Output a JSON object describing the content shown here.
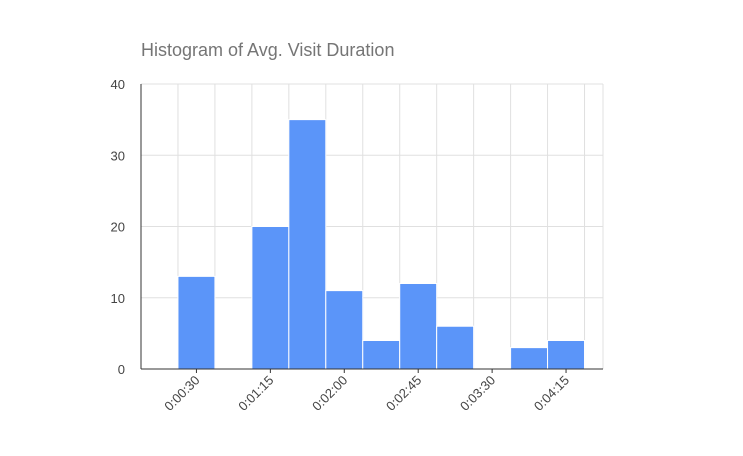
{
  "chart_data": {
    "type": "histogram",
    "title": "Histogram of Avg. Visit Duration",
    "bins": [
      -3.75,
      18.75,
      41.25,
      63.75,
      86.25,
      108.75,
      131.25,
      153.75,
      176.25,
      198.75,
      221.25,
      243.75,
      266.25
    ],
    "values": [
      0,
      13,
      0,
      20,
      35,
      11,
      4,
      12,
      6,
      0,
      3,
      4
    ],
    "color": "#5b95f9",
    "xlim": [
      -3.75,
      277.5
    ],
    "xticks": [
      {
        "value": 30,
        "label": "0:00:30"
      },
      {
        "value": 75,
        "label": "0:01:15"
      },
      {
        "value": 120,
        "label": "0:02:00"
      },
      {
        "value": 165,
        "label": "0:02:45"
      },
      {
        "value": 210,
        "label": "0:03:30"
      },
      {
        "value": 255,
        "label": "0:04:15"
      }
    ],
    "ylim": [
      0,
      40
    ],
    "yticks": [
      0,
      10,
      20,
      30,
      40
    ],
    "grid": true
  }
}
